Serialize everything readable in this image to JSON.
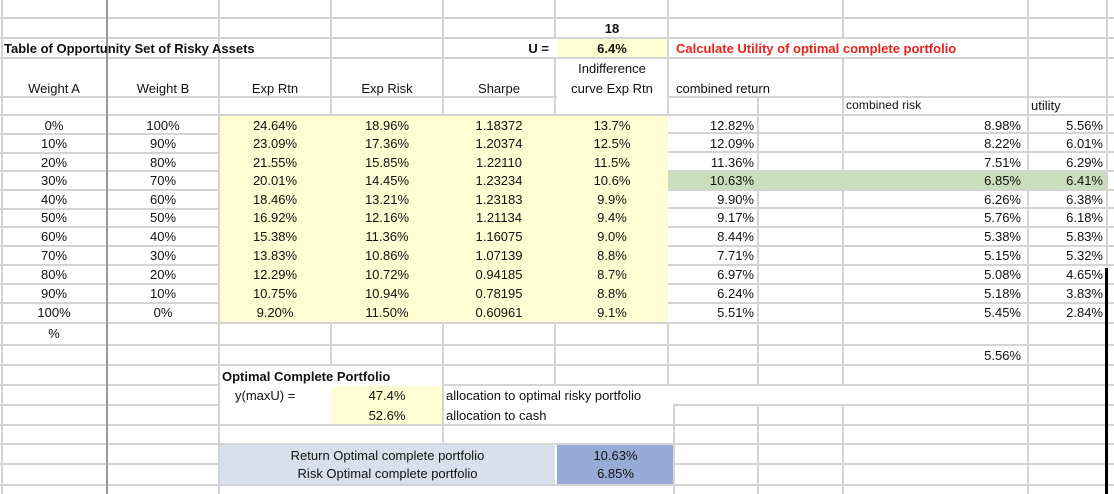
{
  "sheet": {
    "title": "Table of Opportunity Set of Risky Assets",
    "risk_aversion_value": "18",
    "u_label": "U =",
    "u_value": "6.4%",
    "instruction": "Calculate Utility of optimal complete portfolio",
    "headers": {
      "weight_a": "Weight A",
      "weight_b": "Weight B",
      "exp_rtn": "Exp Rtn",
      "exp_risk": "Exp Risk",
      "sharpe": "Sharpe",
      "indiff_line1": "Indifference",
      "indiff_line2": "curve Exp Rtn",
      "combined_return": "combined return",
      "combined_risk": "combined risk",
      "utility": "utility"
    },
    "rows": [
      {
        "wa": "0%",
        "wb": "100%",
        "rtn": "24.64%",
        "risk": "18.96%",
        "sharpe": "1.18372",
        "indiff": "13.7%",
        "cret": "12.82%",
        "crisk": "8.98%",
        "util": "5.56%"
      },
      {
        "wa": "10%",
        "wb": "90%",
        "rtn": "23.09%",
        "risk": "17.36%",
        "sharpe": "1.20374",
        "indiff": "12.5%",
        "cret": "12.09%",
        "crisk": "8.22%",
        "util": "6.01%"
      },
      {
        "wa": "20%",
        "wb": "80%",
        "rtn": "21.55%",
        "risk": "15.85%",
        "sharpe": "1.22110",
        "indiff": "11.5%",
        "cret": "11.36%",
        "crisk": "7.51%",
        "util": "6.29%"
      },
      {
        "wa": "30%",
        "wb": "70%",
        "rtn": "20.01%",
        "risk": "14.45%",
        "sharpe": "1.23234",
        "indiff": "10.6%",
        "cret": "10.63%",
        "crisk": "6.85%",
        "util": "6.41%"
      },
      {
        "wa": "40%",
        "wb": "60%",
        "rtn": "18.46%",
        "risk": "13.21%",
        "sharpe": "1.23183",
        "indiff": "9.9%",
        "cret": "9.90%",
        "crisk": "6.26%",
        "util": "6.38%"
      },
      {
        "wa": "50%",
        "wb": "50%",
        "rtn": "16.92%",
        "risk": "12.16%",
        "sharpe": "1.21134",
        "indiff": "9.4%",
        "cret": "9.17%",
        "crisk": "5.76%",
        "util": "6.18%"
      },
      {
        "wa": "60%",
        "wb": "40%",
        "rtn": "15.38%",
        "risk": "11.36%",
        "sharpe": "1.16075",
        "indiff": "9.0%",
        "cret": "8.44%",
        "crisk": "5.38%",
        "util": "5.83%"
      },
      {
        "wa": "70%",
        "wb": "30%",
        "rtn": "13.83%",
        "risk": "10.86%",
        "sharpe": "1.07139",
        "indiff": "8.8%",
        "cret": "7.71%",
        "crisk": "5.15%",
        "util": "5.32%"
      },
      {
        "wa": "80%",
        "wb": "20%",
        "rtn": "12.29%",
        "risk": "10.72%",
        "sharpe": "0.94185",
        "indiff": "8.7%",
        "cret": "6.97%",
        "crisk": "5.08%",
        "util": "4.65%"
      },
      {
        "wa": "90%",
        "wb": "10%",
        "rtn": "10.75%",
        "risk": "10.94%",
        "sharpe": "0.78195",
        "indiff": "8.8%",
        "cret": "6.24%",
        "crisk": "5.18%",
        "util": "3.83%"
      },
      {
        "wa": "100%",
        "wb": "0%",
        "rtn": "9.20%",
        "risk": "11.50%",
        "sharpe": "0.60961",
        "indiff": "9.1%",
        "cret": "5.51%",
        "crisk": "5.45%",
        "util": "2.84%"
      }
    ],
    "percent_label": "%",
    "extra_risk_value": "5.56%",
    "optimal": {
      "title": "Optimal Complete Portfolio",
      "y_label": "y(maxU) =",
      "y_value": "47.4%",
      "y_desc": "allocation to optimal risky portfolio",
      "cash_value": "52.6%",
      "cash_desc": "allocation to cash",
      "return_label": "Return Optimal complete portfolio",
      "return_value": "10.63%",
      "risk_label": "Risk Optimal complete portfolio",
      "risk_value": "6.85%"
    },
    "colors": {
      "yellow_fill": "#fefed2",
      "green_highlight": "#c9dfbb",
      "light_blue": "#dadfee",
      "mid_blue": "#97aad8",
      "red_text": "#e8231c"
    }
  }
}
